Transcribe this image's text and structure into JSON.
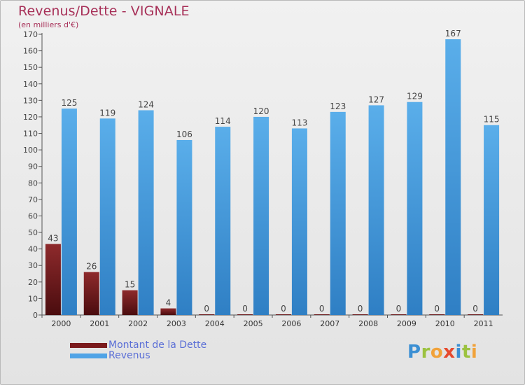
{
  "chart_data": {
    "type": "bar",
    "title": "Revenus/Dette - VIGNALE",
    "subtitle": "(en milliers d'€)",
    "categories": [
      "2000",
      "2001",
      "2002",
      "2003",
      "2004",
      "2005",
      "2006",
      "2007",
      "2008",
      "2009",
      "2010",
      "2011"
    ],
    "series": [
      {
        "name": "Montant de la Dette",
        "color": "#7a1a1c",
        "values": [
          43,
          26,
          15,
          4,
          0,
          0,
          0,
          0,
          0,
          0,
          0,
          0
        ]
      },
      {
        "name": "Revenus",
        "color": "#4fa3e6",
        "values": [
          125,
          119,
          124,
          106,
          114,
          120,
          113,
          123,
          127,
          129,
          167,
          115
        ]
      }
    ],
    "ylim": [
      0,
      170
    ],
    "yticks": [
      0,
      10,
      20,
      30,
      40,
      50,
      60,
      70,
      80,
      90,
      100,
      110,
      120,
      130,
      140,
      150,
      160,
      170
    ],
    "grid": false,
    "legend": "bottom-left"
  },
  "logo_text": "Proxiti"
}
